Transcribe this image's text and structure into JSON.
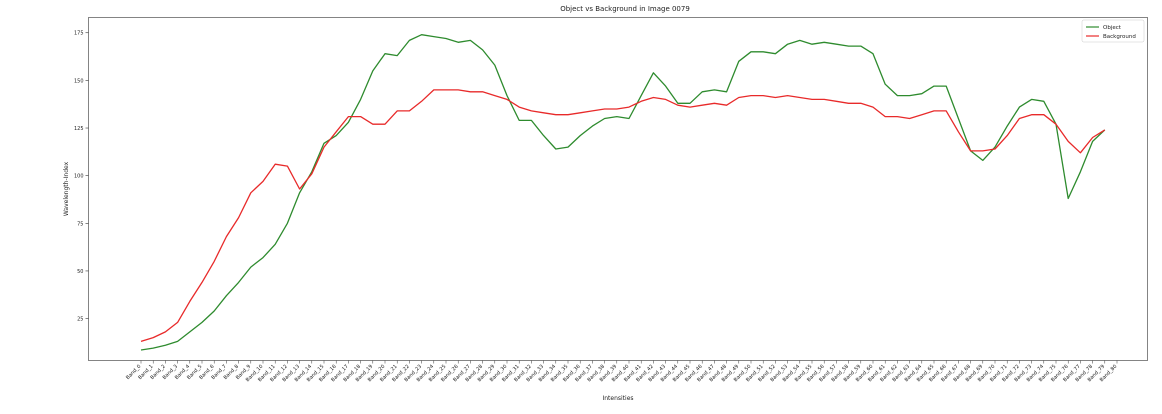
{
  "chart_data": {
    "type": "line",
    "title": "Object vs Background in Image 0079",
    "xlabel": "Intensities",
    "ylabel": "Wavelength-Index",
    "ylim": [
      3,
      183
    ],
    "yticks": [
      25,
      50,
      75,
      100,
      125,
      150,
      175
    ],
    "grid": false,
    "legend_position": "top-right",
    "categories": [
      "Band_0",
      "Band_1",
      "Band_2",
      "Band_3",
      "Band_4",
      "Band_5",
      "Band_6",
      "Band_7",
      "Band_8",
      "Band_9",
      "Band_10",
      "Band_11",
      "Band_12",
      "Band_13",
      "Band_14",
      "Band_15",
      "Band_16",
      "Band_17",
      "Band_18",
      "Band_19",
      "Band_20",
      "Band_21",
      "Band_22",
      "Band_23",
      "Band_24",
      "Band_25",
      "Band_26",
      "Band_27",
      "Band_28",
      "Band_29",
      "Band_30",
      "Band_31",
      "Band_32",
      "Band_33",
      "Band_34",
      "Band_35",
      "Band_36",
      "Band_37",
      "Band_38",
      "Band_39",
      "Band_40",
      "Band_41",
      "Band_42",
      "Band_43",
      "Band_44",
      "Band_45",
      "Band_46",
      "Band_47",
      "Band_48",
      "Band_49",
      "Band_50",
      "Band_51",
      "Band_52",
      "Band_53",
      "Band_54",
      "Band_55",
      "Band_56",
      "Band_57",
      "Band_58",
      "Band_59",
      "Band_60",
      "Band_61",
      "Band_62",
      "Band_63",
      "Band_64",
      "Band_65",
      "Band_66",
      "Band_67",
      "Band_68",
      "Band_69",
      "Band_70",
      "Band_71",
      "Band_72",
      "Band_73",
      "Band_74",
      "Band_75",
      "Band_76",
      "Band_77",
      "Band_78",
      "Band_79",
      "Band_80"
    ],
    "series": [
      {
        "name": "Object",
        "color": "#2e8b2e",
        "values": [
          8.5,
          9.5,
          11,
          13,
          18,
          23,
          29,
          37,
          44,
          52,
          57,
          64,
          75,
          91,
          102,
          117,
          121,
          128,
          140,
          155,
          164,
          163,
          171,
          174,
          173,
          172,
          170,
          171,
          166,
          158,
          142,
          129,
          129,
          121,
          114,
          115,
          121,
          126,
          130,
          131,
          130,
          142,
          154,
          147,
          138,
          138,
          144,
          145,
          144,
          160,
          165,
          165,
          164,
          169,
          171,
          169,
          170,
          169,
          168,
          168,
          164,
          148,
          142,
          142,
          143,
          147,
          147,
          130,
          113,
          108,
          115,
          126,
          136,
          140,
          139,
          127,
          88,
          102,
          118,
          124,
          125
        ],
        "draw_count": 80
      },
      {
        "name": "Background",
        "color": "#e82a2a",
        "values": [
          13,
          15,
          18,
          23,
          34,
          44,
          55,
          68,
          78,
          91,
          97,
          106,
          105,
          93,
          101,
          115,
          123,
          131,
          131,
          127,
          127,
          134,
          134,
          139,
          145,
          145,
          145,
          144,
          144,
          142,
          140,
          136,
          134,
          133,
          132,
          132,
          133,
          134,
          135,
          135,
          136,
          139,
          141,
          140,
          137,
          136,
          137,
          138,
          137,
          141,
          142,
          142,
          141,
          142,
          141,
          140,
          140,
          139,
          138,
          138,
          136,
          131,
          131,
          130,
          132,
          134,
          134,
          123,
          113,
          113,
          114,
          121,
          130,
          132,
          132,
          127,
          118,
          112,
          120,
          124,
          124
        ],
        "draw_count": 80
      }
    ]
  }
}
